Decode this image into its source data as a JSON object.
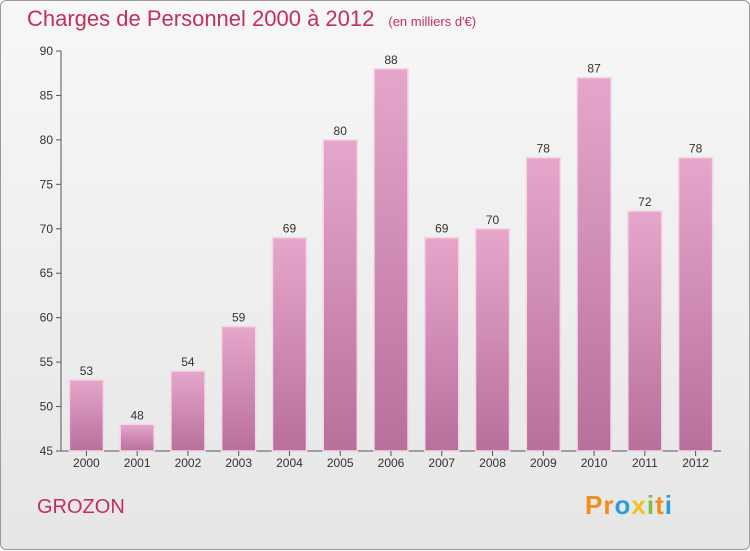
{
  "title": "Charges de Personnel 2000 à 2012",
  "subtitle": "(en milliers d'€)",
  "place": "GROZON",
  "logo": {
    "letters": [
      "P",
      "r",
      "o",
      "x",
      "i",
      "t",
      "i"
    ],
    "colors": [
      "#f28c1d",
      "#f28c1d",
      "#2a9fd6",
      "#f2c21d",
      "#7cc142",
      "#f28c1d",
      "#2a9fd6"
    ]
  },
  "colors": {
    "accent": "#c2305a",
    "bar_top": "#e6a6cb",
    "bar_bottom": "#b7709c"
  },
  "chart_data": {
    "type": "bar",
    "categories": [
      "2000",
      "2001",
      "2002",
      "2003",
      "2004",
      "2005",
      "2006",
      "2007",
      "2008",
      "2009",
      "2010",
      "2011",
      "2012"
    ],
    "values": [
      53,
      48,
      54,
      59,
      69,
      80,
      88,
      69,
      70,
      78,
      87,
      72,
      78
    ],
    "ylim": [
      45,
      90
    ],
    "yticks": [
      45,
      50,
      55,
      60,
      65,
      70,
      75,
      80,
      85,
      90
    ],
    "grid": false
  }
}
